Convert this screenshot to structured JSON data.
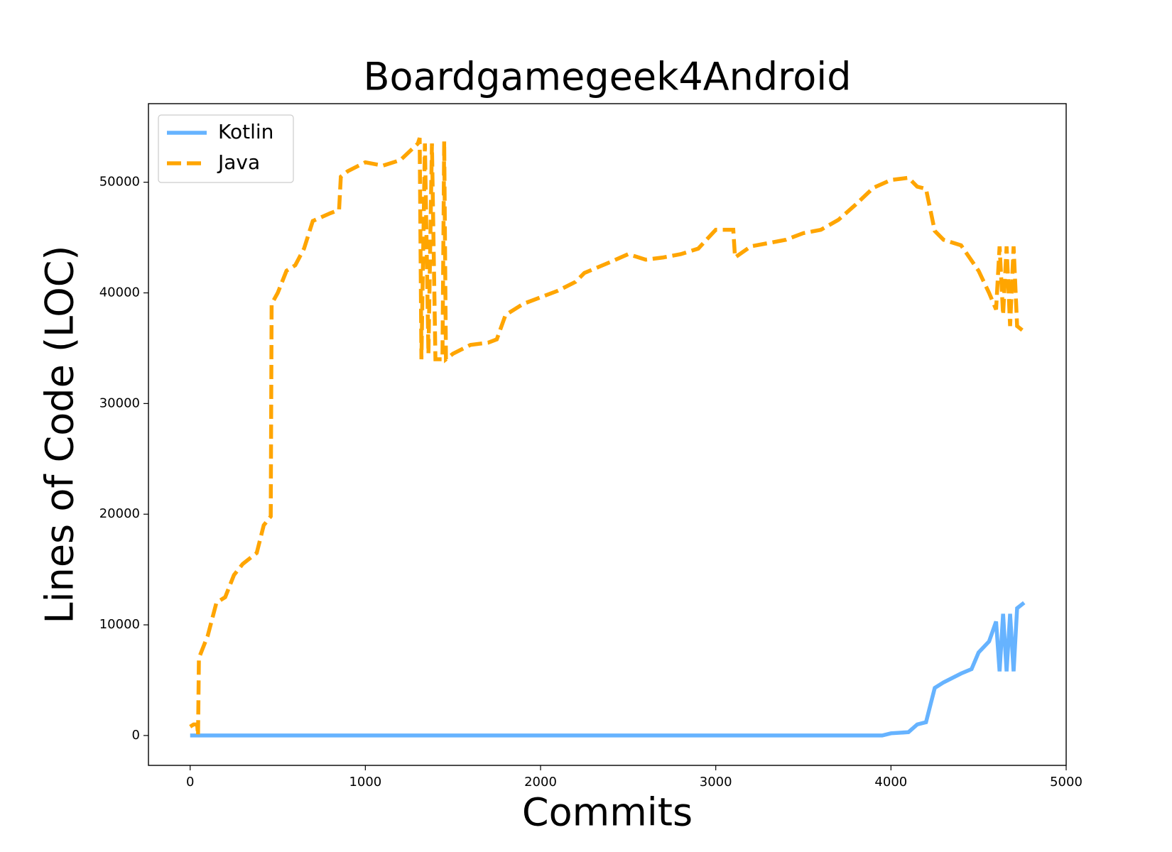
{
  "chart_data": {
    "type": "line",
    "title": "Boardgamegeek4Android",
    "xlabel": "Commits",
    "ylabel": "Lines of Code (LOC)",
    "xlim": [
      -238,
      5000
    ],
    "ylim": [
      -2700,
      57100
    ],
    "xticks": [
      0,
      1000,
      2000,
      3000,
      4000,
      5000
    ],
    "yticks": [
      0,
      10000,
      20000,
      30000,
      40000,
      50000
    ],
    "legend": "upper left",
    "series": [
      {
        "name": "Kotlin",
        "color": "#66b3ff",
        "dash": "solid",
        "x": [
          0,
          3950,
          4000,
          4100,
          4150,
          4200,
          4250,
          4300,
          4400,
          4460,
          4500,
          4560,
          4600,
          4620,
          4640,
          4660,
          4680,
          4700,
          4720,
          4760
        ],
        "values": [
          0,
          0,
          200,
          300,
          1000,
          1200,
          4300,
          4800,
          5600,
          6000,
          7500,
          8500,
          10300,
          5800,
          11000,
          5800,
          11000,
          5800,
          11500,
          12000
        ]
      },
      {
        "name": "Java",
        "color": "#ffa500",
        "dash": "dashed",
        "x": [
          0,
          20,
          40,
          45,
          50,
          100,
          150,
          200,
          250,
          300,
          380,
          420,
          460,
          465,
          500,
          550,
          600,
          650,
          700,
          800,
          850,
          860,
          900,
          1000,
          1100,
          1200,
          1300,
          1310,
          1320,
          1340,
          1360,
          1380,
          1400,
          1440,
          1450,
          1460,
          1500,
          1600,
          1700,
          1750,
          1800,
          1900,
          2000,
          2100,
          2200,
          2250,
          2400,
          2500,
          2600,
          2700,
          2800,
          2900,
          3000,
          3100,
          3110,
          3200,
          3300,
          3400,
          3500,
          3600,
          3700,
          3800,
          3900,
          4000,
          4100,
          4150,
          4200,
          4250,
          4300,
          4400,
          4500,
          4560,
          4600,
          4620,
          4640,
          4660,
          4680,
          4700,
          4720,
          4760
        ],
        "values": [
          800,
          1000,
          1000,
          0,
          7000,
          9000,
          12000,
          12500,
          14500,
          15500,
          16500,
          19000,
          19800,
          39000,
          40000,
          42000,
          42500,
          44000,
          46500,
          47200,
          47500,
          50500,
          51000,
          51800,
          51500,
          52000,
          53500,
          54000,
          34000,
          53500,
          34500,
          53500,
          34000,
          34000,
          53700,
          34000,
          34500,
          35300,
          35500,
          35800,
          38000,
          39000,
          39600,
          40200,
          41000,
          41800,
          42800,
          43500,
          43000,
          43200,
          43500,
          44000,
          45700,
          45700,
          43200,
          44200,
          44500,
          44800,
          45400,
          45700,
          46600,
          48000,
          49500,
          50200,
          50400,
          49600,
          49400,
          45600,
          44800,
          44300,
          42000,
          40000,
          38500,
          44200,
          38000,
          44200,
          37000,
          44200,
          37000,
          36500
        ]
      }
    ]
  }
}
